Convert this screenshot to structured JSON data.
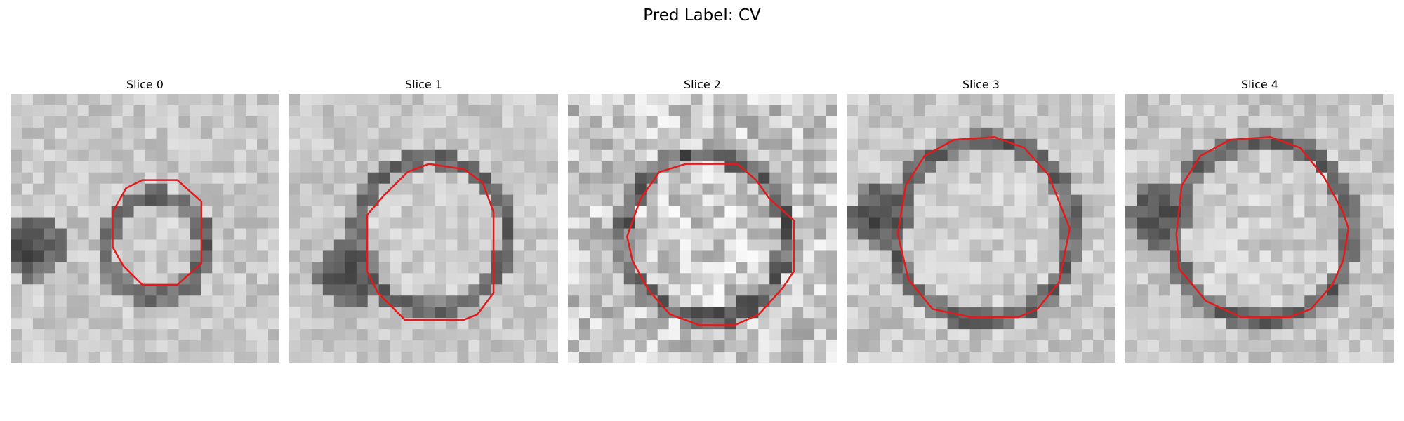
{
  "figure": {
    "suptitle": "Pred Label: CV"
  },
  "panels": [
    {
      "title": "Slice 0",
      "contour_color": "#e31a1c"
    },
    {
      "title": "Slice 1",
      "contour_color": "#e31a1c"
    },
    {
      "title": "Slice 2",
      "contour_color": "#e31a1c"
    },
    {
      "title": "Slice 3",
      "contour_color": "#e31a1c"
    },
    {
      "title": "Slice 4",
      "contour_color": "#e31a1c"
    }
  ]
}
